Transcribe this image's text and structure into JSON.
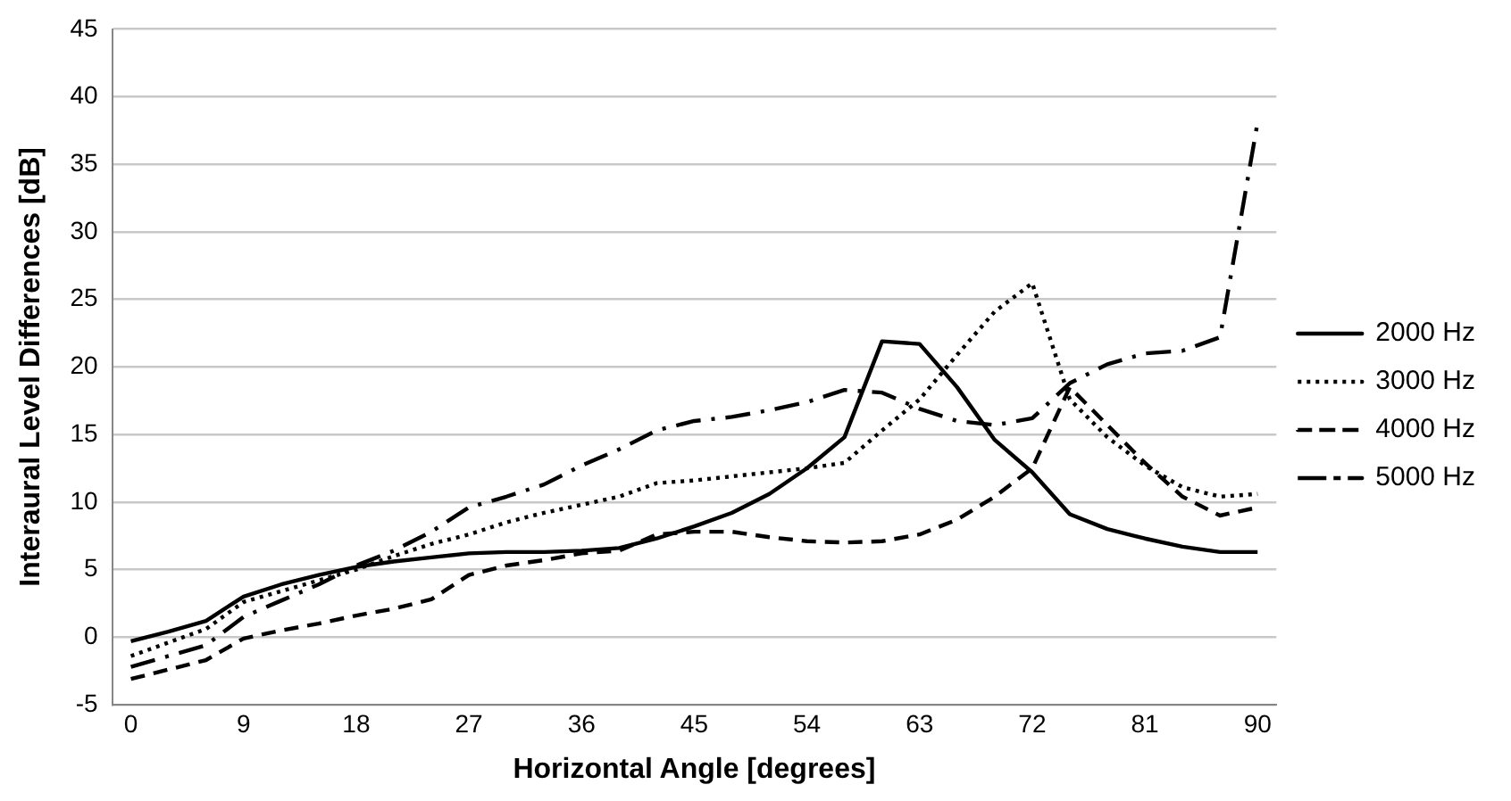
{
  "chart_data": {
    "type": "line",
    "xlabel": "Horizontal Angle [degrees]",
    "ylabel": "Interaural Level Differences [dB]",
    "x": [
      0,
      3,
      6,
      9,
      12,
      15,
      18,
      21,
      24,
      27,
      30,
      33,
      36,
      39,
      42,
      45,
      48,
      51,
      54,
      57,
      60,
      63,
      66,
      69,
      72,
      75,
      78,
      81,
      84,
      87,
      90
    ],
    "xlim": [
      -1.5,
      91.5
    ],
    "xticks": [
      0,
      9,
      18,
      27,
      36,
      45,
      54,
      63,
      72,
      81,
      90
    ],
    "ylim": [
      -5,
      45
    ],
    "yticks": [
      -5,
      0,
      5,
      10,
      15,
      20,
      25,
      30,
      35,
      40,
      45
    ],
    "grid": "y",
    "legend": "right",
    "marker": "none",
    "series": [
      {
        "name": "2000 Hz",
        "color": "#000000",
        "line_style": "solid",
        "values": [
          -0.3,
          0.4,
          1.2,
          3.0,
          3.9,
          4.6,
          5.2,
          5.6,
          5.9,
          6.2,
          6.3,
          6.3,
          6.4,
          6.6,
          7.3,
          8.2,
          9.2,
          10.6,
          12.5,
          14.8,
          21.9,
          21.7,
          18.5,
          14.6,
          12.2,
          9.1,
          8.0,
          7.3,
          6.7,
          6.3,
          6.3
        ]
      },
      {
        "name": "3000 Hz",
        "color": "#000000",
        "line_style": "dotted",
        "values": [
          -1.4,
          -0.4,
          0.6,
          2.6,
          3.4,
          4.2,
          5.0,
          6.0,
          6.9,
          7.6,
          8.5,
          9.2,
          9.8,
          10.4,
          11.4,
          11.6,
          11.9,
          12.2,
          12.5,
          12.9,
          15.3,
          17.6,
          20.9,
          24.1,
          26.2,
          17.6,
          14.8,
          12.7,
          11.1,
          10.4,
          10.6
        ]
      },
      {
        "name": "4000 Hz",
        "color": "#000000",
        "line_style": "dashed",
        "values": [
          -3.1,
          -2.4,
          -1.7,
          -0.1,
          0.5,
          1.0,
          1.6,
          2.1,
          2.8,
          4.6,
          5.3,
          5.7,
          6.2,
          6.4,
          7.6,
          7.8,
          7.8,
          7.4,
          7.1,
          7.0,
          7.1,
          7.6,
          8.7,
          10.4,
          12.5,
          18.5,
          15.7,
          12.9,
          10.4,
          9.0,
          9.6
        ]
      },
      {
        "name": "5000 Hz",
        "color": "#000000",
        "line_style": "dashdot",
        "values": [
          -2.2,
          -1.4,
          -0.6,
          1.5,
          2.7,
          3.9,
          5.3,
          6.4,
          7.8,
          9.6,
          10.4,
          11.3,
          12.7,
          13.9,
          15.3,
          16.0,
          16.3,
          16.8,
          17.4,
          18.3,
          18.1,
          16.9,
          16.0,
          15.7,
          16.2,
          18.8,
          20.2,
          21.0,
          21.2,
          22.2,
          38.1
        ]
      }
    ]
  }
}
